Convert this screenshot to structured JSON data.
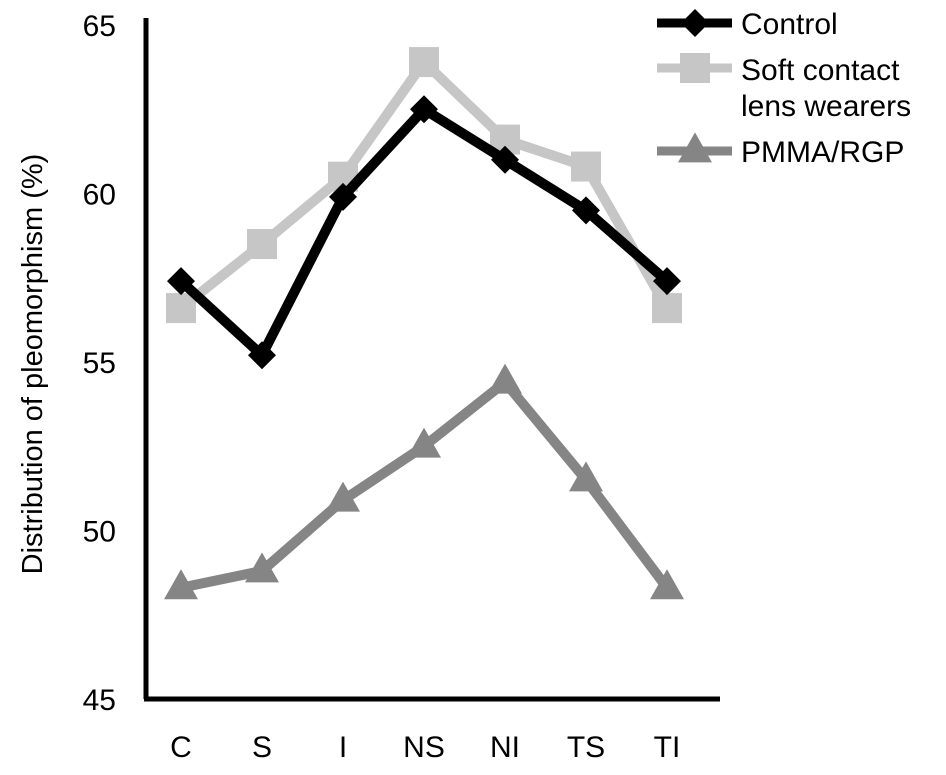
{
  "chart_data": {
    "type": "line",
    "title": "",
    "xlabel": "",
    "ylabel": "Distribution of pleomorphism (%)",
    "ylim": [
      45,
      65
    ],
    "yticks": [
      45,
      50,
      55,
      60,
      65
    ],
    "categories": [
      "C",
      "S",
      "I",
      "NS",
      "NI",
      "TS",
      "TI"
    ],
    "grid": false,
    "legend_position": "top-right",
    "series": [
      {
        "name": "Control",
        "marker": "diamond",
        "color": "#000000",
        "values": [
          57.4,
          55.2,
          59.9,
          62.5,
          61.0,
          59.5,
          57.4
        ]
      },
      {
        "name": "Soft contact lens wearers",
        "marker": "square",
        "color": "#c6c6c6",
        "values": [
          56.6,
          58.5,
          60.5,
          63.9,
          61.6,
          60.8,
          56.6
        ]
      },
      {
        "name": "PMMA/RGP",
        "marker": "triangle",
        "color": "#858585",
        "values": [
          48.3,
          48.8,
          50.9,
          52.5,
          54.4,
          51.5,
          48.3
        ]
      }
    ]
  }
}
